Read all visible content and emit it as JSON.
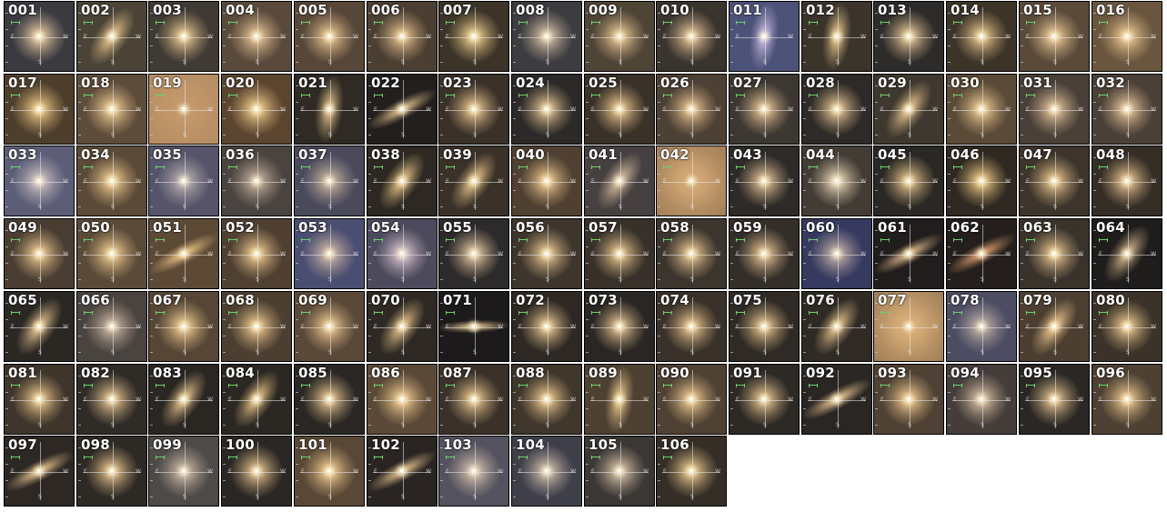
{
  "compass": {
    "east": "E",
    "west": "W",
    "south": "S"
  },
  "colors": {
    "page_background": "#ffffff",
    "label": "#ffffff",
    "scalebar": "#6fd06f"
  },
  "grid": {
    "columns": 16,
    "rows": 7,
    "total": 106
  },
  "cutouts": [
    {
      "label": "001",
      "bg": "#3a3a40",
      "glow": "#e6c9a0",
      "shape": "round"
    },
    {
      "label": "002",
      "bg": "#4a4336",
      "glow": "#e8c48e",
      "shape": "tilt"
    },
    {
      "label": "003",
      "bg": "#3f3a33",
      "glow": "#e8c690",
      "shape": "round"
    },
    {
      "label": "004",
      "bg": "#5a4a3c",
      "glow": "#e8c594",
      "shape": "round"
    },
    {
      "label": "005",
      "bg": "#574738",
      "glow": "#e9c592",
      "shape": "round"
    },
    {
      "label": "006",
      "bg": "#4b3f33",
      "glow": "#e6c08c",
      "shape": "round"
    },
    {
      "label": "007",
      "bg": "#3c3428",
      "glow": "#efd08e",
      "shape": "round"
    },
    {
      "label": "008",
      "bg": "#3d3c40",
      "glow": "#d8c3a8",
      "shape": "round"
    },
    {
      "label": "009",
      "bg": "#4f4537",
      "glow": "#e9c793",
      "shape": "round"
    },
    {
      "label": "010",
      "bg": "#3a342f",
      "glow": "#e4c396",
      "shape": "round"
    },
    {
      "label": "011",
      "bg": "#4d5278",
      "glow": "#c6b8e0",
      "shape": "vertical"
    },
    {
      "label": "012",
      "bg": "#3a342a",
      "glow": "#e8c58c",
      "shape": "vertical"
    },
    {
      "label": "013",
      "bg": "#2e2c2a",
      "glow": "#e6c698",
      "shape": "round"
    },
    {
      "label": "014",
      "bg": "#3d3428",
      "glow": "#e6c48c",
      "shape": "round"
    },
    {
      "label": "015",
      "bg": "#5a4a3a",
      "glow": "#ebc894",
      "shape": "round"
    },
    {
      "label": "016",
      "bg": "#6a563f",
      "glow": "#edca92",
      "shape": "round"
    },
    {
      "label": "017",
      "bg": "#4e3f2c",
      "glow": "#edc985",
      "shape": "round"
    },
    {
      "label": "018",
      "bg": "#5e4c3a",
      "glow": "#f0cd95",
      "shape": "round"
    },
    {
      "label": "019",
      "bg": "#b48c62",
      "glow": "#c69a6c",
      "shape": "flat"
    },
    {
      "label": "020",
      "bg": "#5c452f",
      "glow": "#f1cf8c",
      "shape": "round"
    },
    {
      "label": "021",
      "bg": "#2f2a24",
      "glow": "#e0be88",
      "shape": "vertical"
    },
    {
      "label": "022",
      "bg": "#221f1d",
      "glow": "#d9b987",
      "shape": "diag"
    },
    {
      "label": "023",
      "bg": "#3a3129",
      "glow": "#e8c48e",
      "shape": "round"
    },
    {
      "label": "024",
      "bg": "#2c2a28",
      "glow": "#e2c292",
      "shape": "round"
    },
    {
      "label": "025",
      "bg": "#3a3129",
      "glow": "#e9c58b",
      "shape": "round"
    },
    {
      "label": "026",
      "bg": "#4d4034",
      "glow": "#e6c290",
      "shape": "round"
    },
    {
      "label": "027",
      "bg": "#3c3731",
      "glow": "#e4c394",
      "shape": "round"
    },
    {
      "label": "028",
      "bg": "#2e2a27",
      "glow": "#e3c392",
      "shape": "round"
    },
    {
      "label": "029",
      "bg": "#3e382f",
      "glow": "#e6c48e",
      "shape": "tilt"
    },
    {
      "label": "030",
      "bg": "#5b4a37",
      "glow": "#ecc992",
      "shape": "round"
    },
    {
      "label": "031",
      "bg": "#4a4038",
      "glow": "#e3c39b",
      "shape": "round"
    },
    {
      "label": "032",
      "bg": "#4b4037",
      "glow": "#e4c498",
      "shape": "round"
    },
    {
      "label": "033",
      "bg": "#5c5e78",
      "glow": "#d0c3c3",
      "shape": "round"
    },
    {
      "label": "034",
      "bg": "#5b4a38",
      "glow": "#f0cc90",
      "shape": "round"
    },
    {
      "label": "035",
      "bg": "#55546a",
      "glow": "#bdb3b1",
      "shape": "round"
    },
    {
      "label": "036",
      "bg": "#4a4440",
      "glow": "#c9b29d",
      "shape": "round"
    },
    {
      "label": "037",
      "bg": "#4a4a5c",
      "glow": "#c9b69f",
      "shape": "round"
    },
    {
      "label": "038",
      "bg": "#2d2822",
      "glow": "#e6c384",
      "shape": "tilt"
    },
    {
      "label": "039",
      "bg": "#3a3128",
      "glow": "#e8c689",
      "shape": "tilt"
    },
    {
      "label": "040",
      "bg": "#4f4032",
      "glow": "#ecc78d",
      "shape": "round"
    },
    {
      "label": "041",
      "bg": "#464040",
      "glow": "#d7bea0",
      "shape": "tilt"
    },
    {
      "label": "042",
      "bg": "#9f7c58",
      "glow": "#d7ac77",
      "shape": "flat"
    },
    {
      "label": "043",
      "bg": "#2d2a27",
      "glow": "#e1c195",
      "shape": "round"
    },
    {
      "label": "044",
      "bg": "#423c35",
      "glow": "#e6d3b4",
      "shape": "round"
    },
    {
      "label": "045",
      "bg": "#2a2824",
      "glow": "#e2c08a",
      "shape": "round"
    },
    {
      "label": "046",
      "bg": "#2f2922",
      "glow": "#ecc883",
      "shape": "round"
    },
    {
      "label": "047",
      "bg": "#3d352c",
      "glow": "#e8c48c",
      "shape": "round"
    },
    {
      "label": "048",
      "bg": "#352e27",
      "glow": "#e6c18d",
      "shape": "round"
    },
    {
      "label": "049",
      "bg": "#4a3e32",
      "glow": "#ebc78f",
      "shape": "round"
    },
    {
      "label": "050",
      "bg": "#5a4a38",
      "glow": "#efcb90",
      "shape": "round"
    },
    {
      "label": "051",
      "bg": "#5d4a36",
      "glow": "#e7bf80",
      "shape": "diag"
    },
    {
      "label": "052",
      "bg": "#4f4032",
      "glow": "#eec98d",
      "shape": "round"
    },
    {
      "label": "053",
      "bg": "#4a4e70",
      "glow": "#d2b9a8",
      "shape": "round"
    },
    {
      "label": "054",
      "bg": "#4c4a5c",
      "glow": "#dbc6d0",
      "shape": "round"
    },
    {
      "label": "055",
      "bg": "#2c2a2a",
      "glow": "#e3c6a0",
      "shape": "round"
    },
    {
      "label": "056",
      "bg": "#3e362d",
      "glow": "#e8c68e",
      "shape": "round"
    },
    {
      "label": "057",
      "bg": "#38312a",
      "glow": "#e6c38d",
      "shape": "round"
    },
    {
      "label": "058",
      "bg": "#3c352d",
      "glow": "#e7c590",
      "shape": "round"
    },
    {
      "label": "059",
      "bg": "#342e29",
      "glow": "#e4c291",
      "shape": "round"
    },
    {
      "label": "060",
      "bg": "#363a60",
      "glow": "#c5b2a6",
      "shape": "round"
    },
    {
      "label": "061",
      "bg": "#201d1c",
      "glow": "#d9b487",
      "shape": "diag"
    },
    {
      "label": "062",
      "bg": "#241f1c",
      "glow": "#d89a6b",
      "shape": "diag"
    },
    {
      "label": "063",
      "bg": "#3a332c",
      "glow": "#e5c28d",
      "shape": "round"
    },
    {
      "label": "064",
      "bg": "#1f1d1c",
      "glow": "#d0b28a",
      "shape": "tilt"
    },
    {
      "label": "065",
      "bg": "#2b2824",
      "glow": "#e2c18d",
      "shape": "tilt"
    },
    {
      "label": "066",
      "bg": "#4a4440",
      "glow": "#cdb7a2",
      "shape": "round"
    },
    {
      "label": "067",
      "bg": "#574635",
      "glow": "#eecb90",
      "shape": "round"
    },
    {
      "label": "068",
      "bg": "#4c3f31",
      "glow": "#ecc88c",
      "shape": "round"
    },
    {
      "label": "069",
      "bg": "#5a4838",
      "glow": "#ecc892",
      "shape": "round"
    },
    {
      "label": "070",
      "bg": "#2e2924",
      "glow": "#e2bf86",
      "shape": "tilt"
    },
    {
      "label": "071",
      "bg": "#1c1a1a",
      "glow": "#e0bf8d",
      "shape": "flatline"
    },
    {
      "label": "072",
      "bg": "#2d2824",
      "glow": "#e6c48c",
      "shape": "round"
    },
    {
      "label": "073",
      "bg": "#2a2623",
      "glow": "#e0c090",
      "shape": "round"
    },
    {
      "label": "074",
      "bg": "#3a322a",
      "glow": "#e6c38b",
      "shape": "round"
    },
    {
      "label": "075",
      "bg": "#2f2a25",
      "glow": "#e3c28d",
      "shape": "round"
    },
    {
      "label": "076",
      "bg": "#2f2a24",
      "glow": "#e3c08a",
      "shape": "tilt"
    },
    {
      "label": "077",
      "bg": "#9e7c57",
      "glow": "#ddb37b",
      "shape": "flat"
    },
    {
      "label": "078",
      "bg": "#4c4c62",
      "glow": "#c3b3a8",
      "shape": "round"
    },
    {
      "label": "079",
      "bg": "#4c3f31",
      "glow": "#eac68b",
      "shape": "tilt"
    },
    {
      "label": "080",
      "bg": "#3b3329",
      "glow": "#e8c48a",
      "shape": "round"
    },
    {
      "label": "081",
      "bg": "#3e352b",
      "glow": "#e8c48a",
      "shape": "round"
    },
    {
      "label": "082",
      "bg": "#2f2b27",
      "glow": "#e2c290",
      "shape": "round"
    },
    {
      "label": "083",
      "bg": "#2a2622",
      "glow": "#e3c18b",
      "shape": "tilt"
    },
    {
      "label": "084",
      "bg": "#2b2722",
      "glow": "#e6c287",
      "shape": "tilt"
    },
    {
      "label": "085",
      "bg": "#2a2724",
      "glow": "#e2c18e",
      "shape": "round"
    },
    {
      "label": "086",
      "bg": "#5b4937",
      "glow": "#efcb90",
      "shape": "round"
    },
    {
      "label": "087",
      "bg": "#3a3229",
      "glow": "#e6c38b",
      "shape": "round"
    },
    {
      "label": "088",
      "bg": "#3f362c",
      "glow": "#e8c58c",
      "shape": "round"
    },
    {
      "label": "089",
      "bg": "#4e4132",
      "glow": "#ecc88c",
      "shape": "vertical"
    },
    {
      "label": "090",
      "bg": "#4f4133",
      "glow": "#ebc78e",
      "shape": "round"
    },
    {
      "label": "091",
      "bg": "#2d2925",
      "glow": "#e2c18d",
      "shape": "round"
    },
    {
      "label": "092",
      "bg": "#2a2623",
      "glow": "#e0bf8c",
      "shape": "diag"
    },
    {
      "label": "093",
      "bg": "#4f4133",
      "glow": "#ecc88e",
      "shape": "round"
    },
    {
      "label": "094",
      "bg": "#443d39",
      "glow": "#d7bfa3",
      "shape": "round"
    },
    {
      "label": "095",
      "bg": "#2a2724",
      "glow": "#e2c18f",
      "shape": "round"
    },
    {
      "label": "096",
      "bg": "#4e4133",
      "glow": "#ebc78e",
      "shape": "round"
    },
    {
      "label": "097",
      "bg": "#2d2824",
      "glow": "#e0be88",
      "shape": "diag"
    },
    {
      "label": "098",
      "bg": "#2d2924",
      "glow": "#e4c28c",
      "shape": "round"
    },
    {
      "label": "099",
      "bg": "#4d4a48",
      "glow": "#cdb9a6",
      "shape": "round"
    },
    {
      "label": "100",
      "bg": "#2b2724",
      "glow": "#e2c08b",
      "shape": "round"
    },
    {
      "label": "101",
      "bg": "#5a4836",
      "glow": "#efcb8f",
      "shape": "round"
    },
    {
      "label": "102",
      "bg": "#2a2523",
      "glow": "#dcbb88",
      "shape": "diag"
    },
    {
      "label": "103",
      "bg": "#54525e",
      "glow": "#d6c3b0",
      "shape": "round"
    },
    {
      "label": "104",
      "bg": "#3f3f4a",
      "glow": "#d1c0ad",
      "shape": "round"
    },
    {
      "label": "105",
      "bg": "#3a3735",
      "glow": "#d8c2a6",
      "shape": "round"
    },
    {
      "label": "106",
      "bg": "#342e26",
      "glow": "#e9c88d",
      "shape": "round"
    }
  ]
}
